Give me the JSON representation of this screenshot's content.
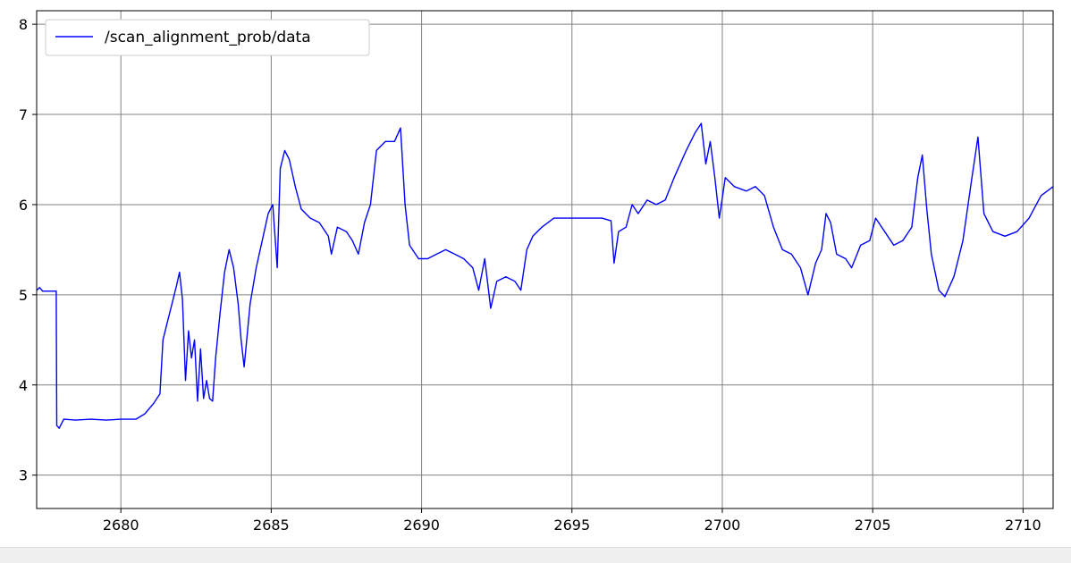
{
  "chart_data": {
    "type": "line",
    "title": "",
    "xlabel": "",
    "ylabel": "",
    "xlim": [
      2677.2,
      2711.0
    ],
    "ylim": [
      2.63,
      8.15
    ],
    "xticks": [
      2680,
      2685,
      2690,
      2695,
      2700,
      2705,
      2710
    ],
    "yticks": [
      3,
      4,
      5,
      6,
      7,
      8
    ],
    "grid": true,
    "legend_position": "top-left",
    "series": [
      {
        "name": "/scan_alignment_prob/data",
        "color": "#0000ff",
        "points": [
          [
            2677.2,
            5.05
          ],
          [
            2677.3,
            5.08
          ],
          [
            2677.4,
            5.04
          ],
          [
            2677.85,
            5.04
          ],
          [
            2677.87,
            3.55
          ],
          [
            2677.95,
            3.52
          ],
          [
            2678.1,
            3.62
          ],
          [
            2678.5,
            3.61
          ],
          [
            2679.0,
            3.62
          ],
          [
            2679.5,
            3.61
          ],
          [
            2680.0,
            3.62
          ],
          [
            2680.5,
            3.62
          ],
          [
            2680.8,
            3.68
          ],
          [
            2681.1,
            3.8
          ],
          [
            2681.3,
            3.9
          ],
          [
            2681.4,
            4.5
          ],
          [
            2681.55,
            4.7
          ],
          [
            2681.7,
            4.9
          ],
          [
            2681.85,
            5.1
          ],
          [
            2681.95,
            5.25
          ],
          [
            2682.05,
            4.95
          ],
          [
            2682.15,
            4.05
          ],
          [
            2682.25,
            4.6
          ],
          [
            2682.35,
            4.3
          ],
          [
            2682.45,
            4.5
          ],
          [
            2682.55,
            3.82
          ],
          [
            2682.65,
            4.4
          ],
          [
            2682.75,
            3.85
          ],
          [
            2682.85,
            4.05
          ],
          [
            2682.95,
            3.85
          ],
          [
            2683.05,
            3.82
          ],
          [
            2683.15,
            4.3
          ],
          [
            2683.3,
            4.8
          ],
          [
            2683.45,
            5.25
          ],
          [
            2683.6,
            5.5
          ],
          [
            2683.75,
            5.3
          ],
          [
            2683.9,
            4.9
          ],
          [
            2684.0,
            4.5
          ],
          [
            2684.1,
            4.2
          ],
          [
            2684.3,
            4.9
          ],
          [
            2684.5,
            5.3
          ],
          [
            2684.7,
            5.6
          ],
          [
            2684.9,
            5.9
          ],
          [
            2685.05,
            6.0
          ],
          [
            2685.2,
            5.3
          ],
          [
            2685.3,
            6.4
          ],
          [
            2685.45,
            6.6
          ],
          [
            2685.6,
            6.5
          ],
          [
            2685.8,
            6.2
          ],
          [
            2686.0,
            5.95
          ],
          [
            2686.3,
            5.85
          ],
          [
            2686.6,
            5.8
          ],
          [
            2686.9,
            5.65
          ],
          [
            2687.0,
            5.45
          ],
          [
            2687.2,
            5.75
          ],
          [
            2687.5,
            5.7
          ],
          [
            2687.7,
            5.6
          ],
          [
            2687.9,
            5.45
          ],
          [
            2688.1,
            5.8
          ],
          [
            2688.3,
            6.0
          ],
          [
            2688.5,
            6.6
          ],
          [
            2688.8,
            6.7
          ],
          [
            2689.1,
            6.7
          ],
          [
            2689.3,
            6.85
          ],
          [
            2689.45,
            6.0
          ],
          [
            2689.6,
            5.55
          ],
          [
            2689.9,
            5.4
          ],
          [
            2690.2,
            5.4
          ],
          [
            2690.5,
            5.45
          ],
          [
            2690.8,
            5.5
          ],
          [
            2691.1,
            5.45
          ],
          [
            2691.4,
            5.4
          ],
          [
            2691.7,
            5.3
          ],
          [
            2691.9,
            5.05
          ],
          [
            2692.1,
            5.4
          ],
          [
            2692.3,
            4.85
          ],
          [
            2692.5,
            5.15
          ],
          [
            2692.8,
            5.2
          ],
          [
            2693.1,
            5.15
          ],
          [
            2693.3,
            5.05
          ],
          [
            2693.5,
            5.5
          ],
          [
            2693.7,
            5.65
          ],
          [
            2694.0,
            5.75
          ],
          [
            2694.4,
            5.85
          ],
          [
            2695.0,
            5.85
          ],
          [
            2695.6,
            5.85
          ],
          [
            2696.0,
            5.85
          ],
          [
            2696.3,
            5.82
          ],
          [
            2696.4,
            5.35
          ],
          [
            2696.55,
            5.7
          ],
          [
            2696.8,
            5.75
          ],
          [
            2697.0,
            6.0
          ],
          [
            2697.2,
            5.9
          ],
          [
            2697.5,
            6.05
          ],
          [
            2697.8,
            6.0
          ],
          [
            2698.1,
            6.05
          ],
          [
            2698.4,
            6.3
          ],
          [
            2698.8,
            6.6
          ],
          [
            2699.1,
            6.8
          ],
          [
            2699.3,
            6.9
          ],
          [
            2699.45,
            6.45
          ],
          [
            2699.6,
            6.7
          ],
          [
            2699.75,
            6.3
          ],
          [
            2699.9,
            5.85
          ],
          [
            2700.1,
            6.3
          ],
          [
            2700.4,
            6.2
          ],
          [
            2700.8,
            6.15
          ],
          [
            2701.1,
            6.2
          ],
          [
            2701.4,
            6.1
          ],
          [
            2701.7,
            5.75
          ],
          [
            2702.0,
            5.5
          ],
          [
            2702.3,
            5.45
          ],
          [
            2702.6,
            5.3
          ],
          [
            2702.85,
            5.0
          ],
          [
            2703.1,
            5.35
          ],
          [
            2703.3,
            5.5
          ],
          [
            2703.45,
            5.9
          ],
          [
            2703.6,
            5.8
          ],
          [
            2703.8,
            5.45
          ],
          [
            2704.1,
            5.4
          ],
          [
            2704.3,
            5.3
          ],
          [
            2704.6,
            5.55
          ],
          [
            2704.9,
            5.6
          ],
          [
            2705.1,
            5.85
          ],
          [
            2705.4,
            5.7
          ],
          [
            2705.7,
            5.55
          ],
          [
            2706.0,
            5.6
          ],
          [
            2706.3,
            5.75
          ],
          [
            2706.5,
            6.3
          ],
          [
            2706.65,
            6.55
          ],
          [
            2706.8,
            5.95
          ],
          [
            2706.95,
            5.45
          ],
          [
            2707.2,
            5.05
          ],
          [
            2707.4,
            4.98
          ],
          [
            2707.7,
            5.2
          ],
          [
            2708.0,
            5.6
          ],
          [
            2708.3,
            6.3
          ],
          [
            2708.5,
            6.75
          ],
          [
            2708.7,
            5.9
          ],
          [
            2709.0,
            5.7
          ],
          [
            2709.4,
            5.65
          ],
          [
            2709.8,
            5.7
          ],
          [
            2710.2,
            5.85
          ],
          [
            2710.6,
            6.1
          ],
          [
            2711.0,
            6.2
          ]
        ]
      }
    ]
  }
}
